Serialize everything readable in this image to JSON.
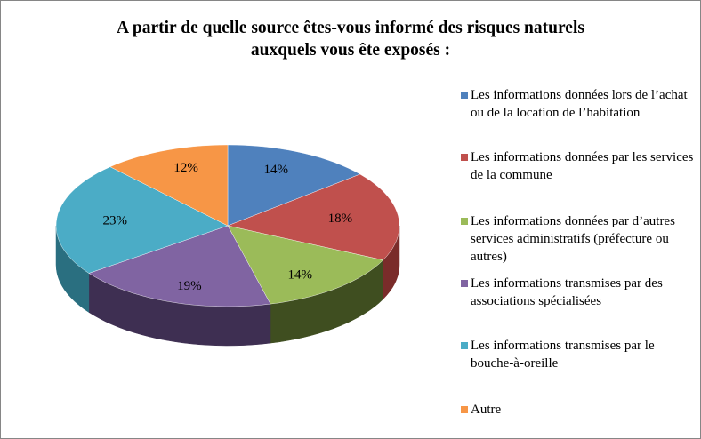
{
  "chart_data": {
    "type": "pie",
    "style": "3d",
    "title_lines": [
      "A partir de quelle source êtes-vous informé des risques naturels",
      "auxquels vous ête exposés :"
    ],
    "legend_position": "right",
    "slices": [
      {
        "name": "Les informations données lors de l’achat ou de la location de l’habitation",
        "value": 14,
        "label": "14%",
        "color": "#4F81BD",
        "side": "#2E4F78"
      },
      {
        "name": "Les informations données par les services de la commune",
        "value": 18,
        "label": "18%",
        "color": "#C0504D",
        "side": "#7A2C2A"
      },
      {
        "name": "Les informations données par d’autres services administratifs (préfecture ou autres)",
        "value": 14,
        "label": "14%",
        "color": "#9BBB59",
        "side": "#3F4E20"
      },
      {
        "name": "Les informations transmises par des associations spécialisées",
        "value": 19,
        "label": "19%",
        "color": "#8064A2",
        "side": "#3E2F52"
      },
      {
        "name": "Les informations transmises par le bouche-à-oreille",
        "value": 23,
        "label": "23%",
        "color": "#4BACC6",
        "side": "#2A6F80"
      },
      {
        "name": "Autre",
        "value": 12,
        "label": "12%",
        "color": "#F79646",
        "side": "#A85E20"
      }
    ]
  }
}
